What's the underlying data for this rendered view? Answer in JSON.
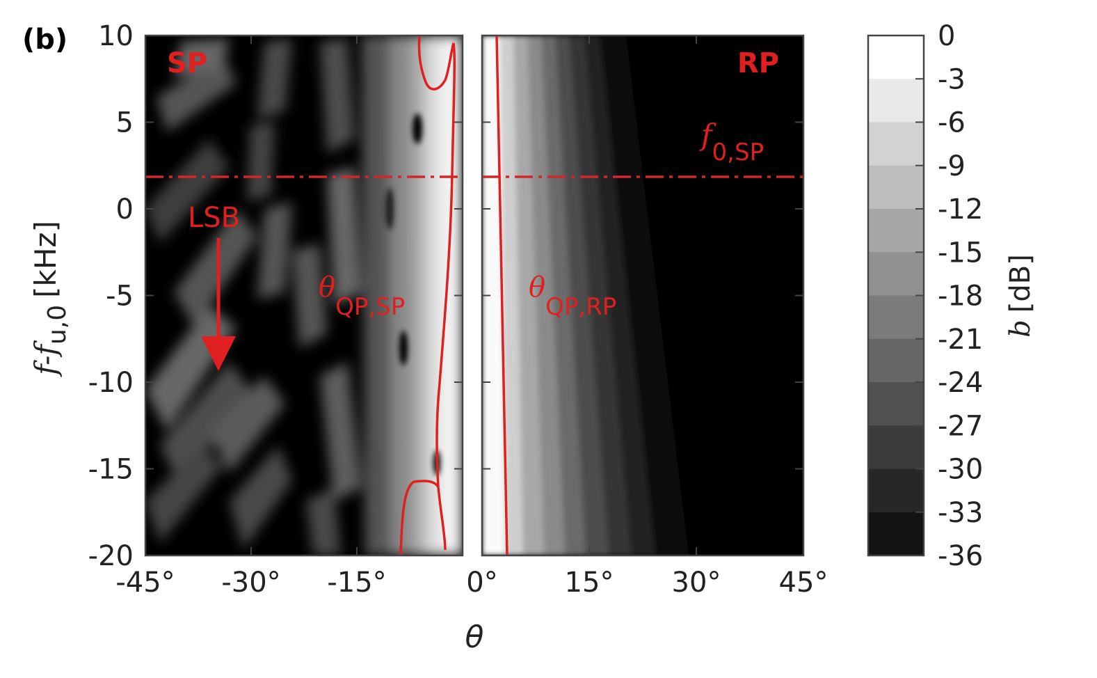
{
  "panel_label": "(b)",
  "chart_data": {
    "type": "heatmap",
    "panels": [
      {
        "name": "SP",
        "x_range": [
          -45,
          0
        ],
        "tick_labels": [
          "-45°",
          "-30°",
          "-15°"
        ]
      },
      {
        "name": "RP",
        "x_range": [
          0,
          45
        ],
        "tick_labels": [
          "0°",
          "15°",
          "30°",
          "45°"
        ]
      }
    ],
    "x_ticks": [
      -45,
      -30,
      -15,
      0,
      15,
      30,
      45
    ],
    "xlabel": "θ",
    "ylabel_main": "f-f",
    "ylabel_sub": "u,0",
    "ylabel_unit": "[kHz]",
    "ylim": [
      -20,
      10
    ],
    "y_ticks": [
      10,
      5,
      0,
      -5,
      -10,
      -15,
      -20
    ],
    "y_tick_labels": [
      "10",
      "5",
      "0",
      "-5",
      "-10",
      "-15",
      "-20"
    ],
    "colorbar": {
      "label_sym": "b",
      "label_unit": "[dB]",
      "range": [
        -36,
        0
      ],
      "levels": [
        0,
        -3,
        -6,
        -9,
        -12,
        -15,
        -18,
        -21,
        -24,
        -27,
        -30,
        -33,
        -36
      ],
      "tick_labels": [
        "0",
        "-3",
        "-6",
        "-9",
        "-12",
        "-15",
        "-18",
        "-21",
        "-24",
        "-27",
        "-30",
        "-33",
        "-36"
      ]
    },
    "reference_line": {
      "y": 2,
      "label_main": "f",
      "label_sub": "0,SP",
      "style": "dash-dot"
    },
    "contour_labels": [
      {
        "main": "θ",
        "sub": "QP,SP"
      },
      {
        "main": "θ",
        "sub": "QP,RP"
      }
    ],
    "annotation": {
      "text": "LSB",
      "arrow_from_y": -1.5,
      "arrow_to_y": -9.5,
      "x": -34
    },
    "colors": {
      "annotation": "#e02020",
      "background": "#000000"
    }
  }
}
